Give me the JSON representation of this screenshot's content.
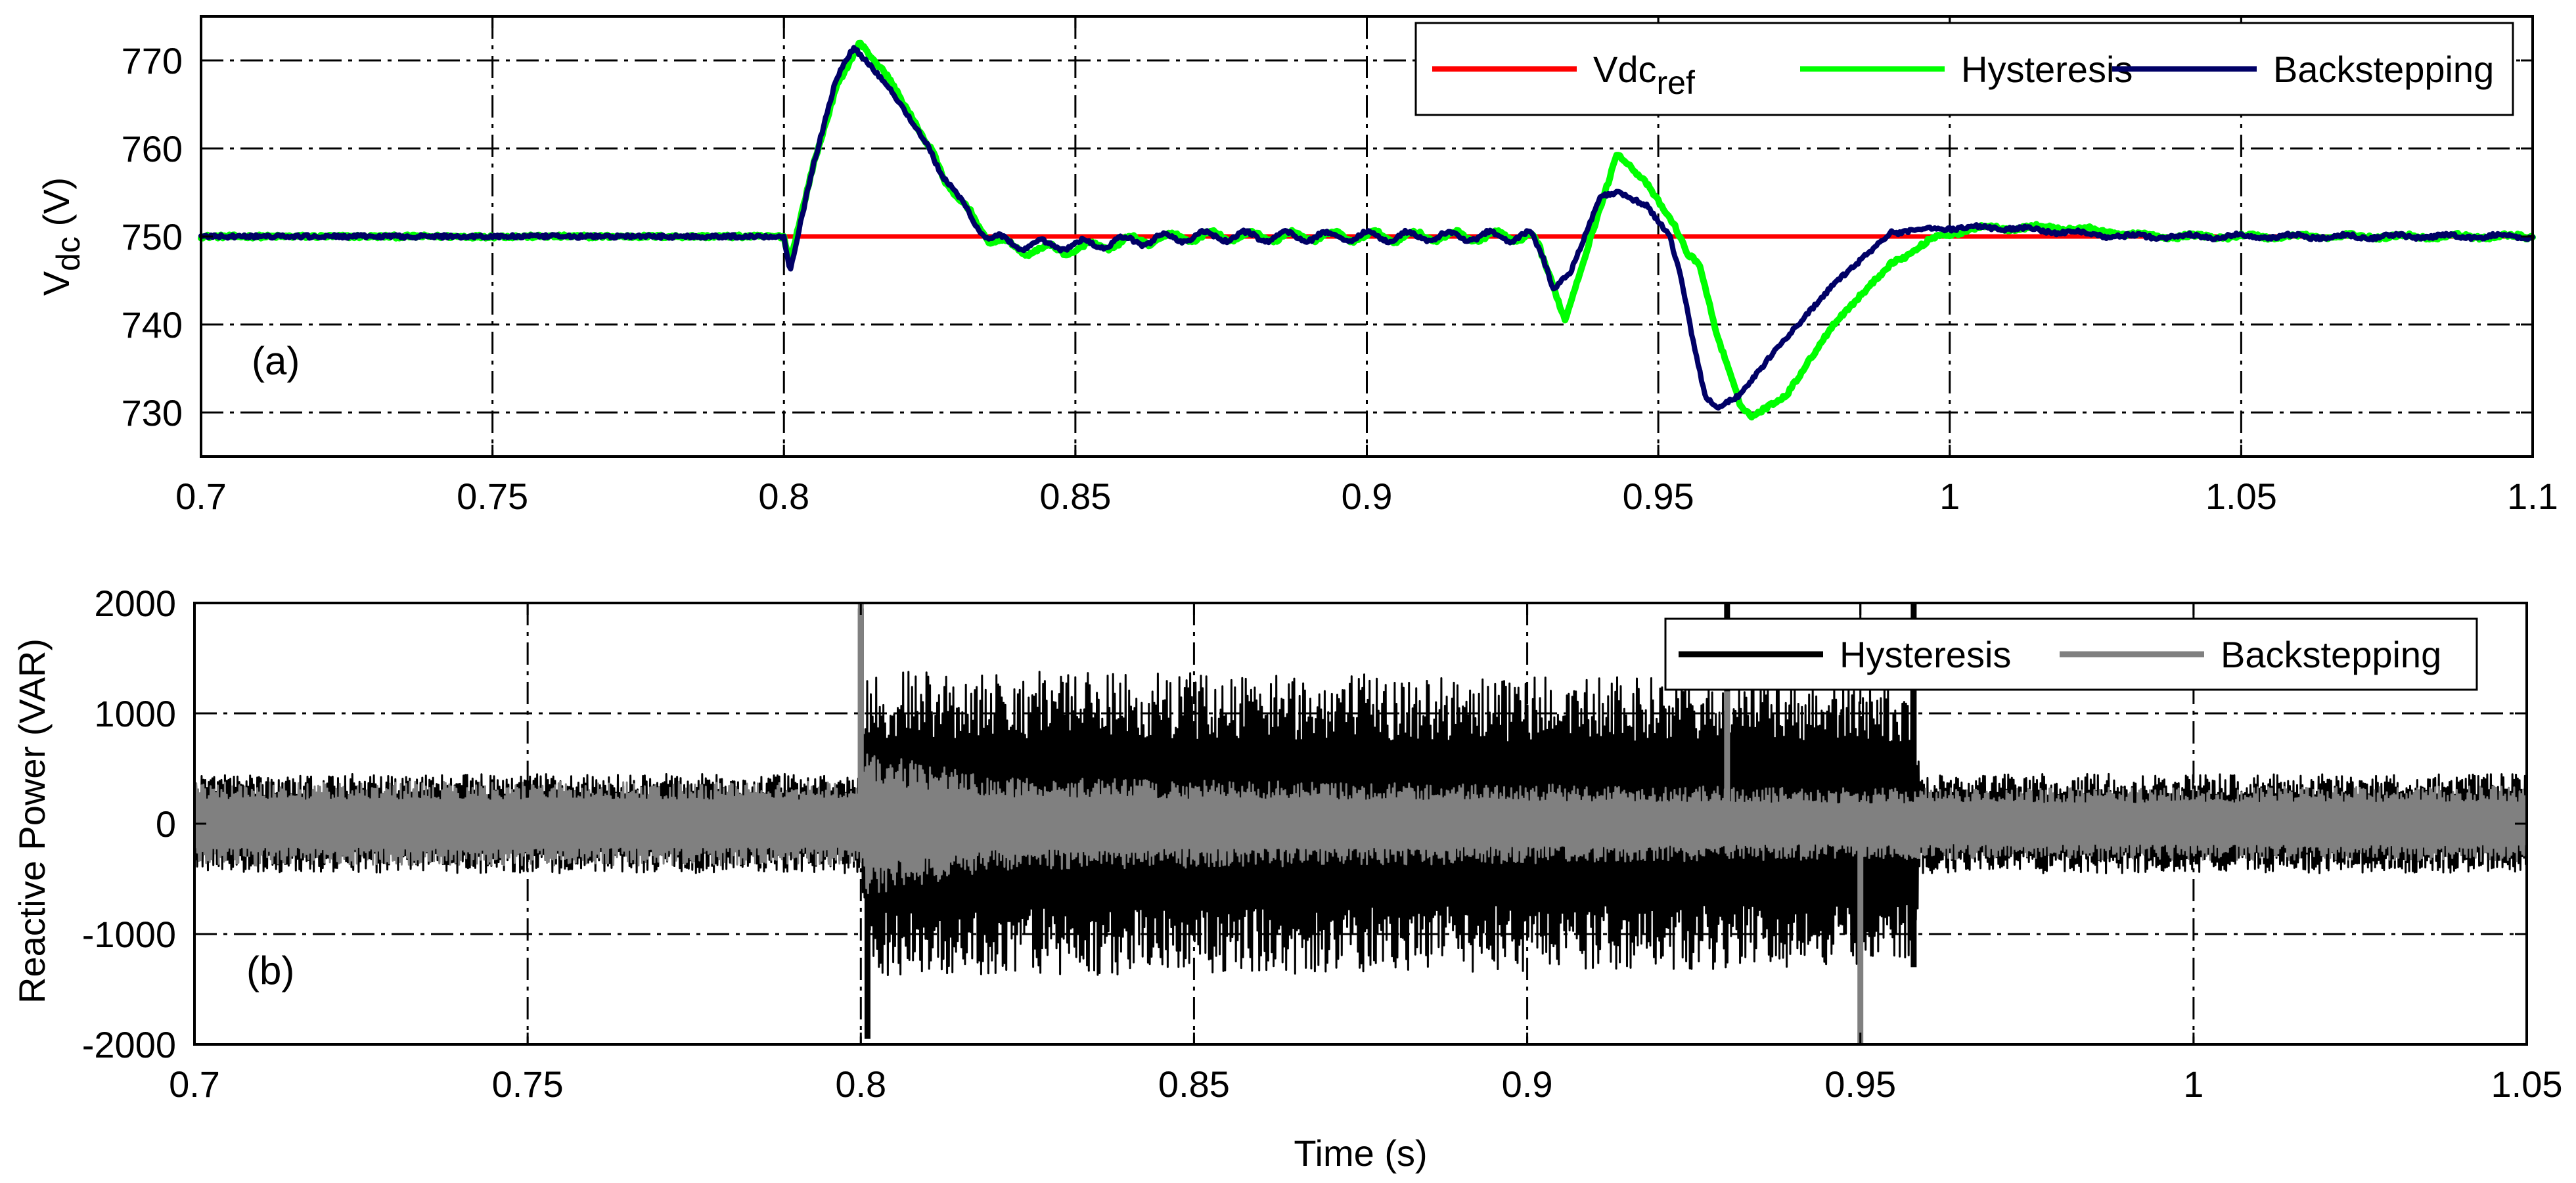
{
  "chart_data": [
    {
      "id": "a",
      "type": "line",
      "panel_label": "(a)",
      "xlabel": "",
      "ylabel_main": "V",
      "ylabel_sub": "dc",
      "ylabel_unit": " (V)",
      "xlim": [
        0.7,
        1.1
      ],
      "ylim": [
        725,
        775
      ],
      "x_ticks": [
        0.7,
        0.75,
        0.8,
        0.85,
        0.9,
        0.95,
        1.0,
        1.05,
        1.1
      ],
      "x_tick_labels": [
        "0.7",
        "0.75",
        "0.8",
        "0.85",
        "0.9",
        "0.95",
        "1",
        "1.05",
        "1.1"
      ],
      "y_ticks": [
        730,
        740,
        750,
        760,
        770
      ],
      "y_tick_labels": [
        "730",
        "740",
        "750",
        "760",
        "770"
      ],
      "grid": true,
      "legend_position": "top-right",
      "series": [
        {
          "name": "Vdc_ref",
          "label_main": "Vdc",
          "label_sub": "ref",
          "color": "#ff0000",
          "points": [
            [
              0.7,
              750
            ],
            [
              0.8,
              750
            ],
            [
              1.1,
              750
            ]
          ]
        },
        {
          "name": "Hysteresis",
          "label_main": "Hysteresis",
          "label_sub": "",
          "color": "#00ff00",
          "points": [
            [
              0.7,
              750
            ],
            [
              0.8,
              750
            ],
            [
              0.801,
              747
            ],
            [
              0.805,
              758
            ],
            [
              0.809,
              767
            ],
            [
              0.813,
              772
            ],
            [
              0.818,
              768
            ],
            [
              0.825,
              760
            ],
            [
              0.83,
              754
            ],
            [
              0.835,
              750
            ],
            [
              0.84,
              748.5
            ],
            [
              0.85,
              748.5
            ],
            [
              0.86,
              749.5
            ],
            [
              0.87,
              750
            ],
            [
              0.9,
              750
            ],
            [
              0.928,
              750
            ],
            [
              0.93,
              748
            ],
            [
              0.934,
              740.5
            ],
            [
              0.938,
              749
            ],
            [
              0.943,
              759.5
            ],
            [
              0.948,
              756
            ],
            [
              0.95,
              754
            ],
            [
              0.953,
              751
            ],
            [
              0.955,
              748
            ],
            [
              0.957,
              747
            ],
            [
              0.96,
              739
            ],
            [
              0.964,
              731
            ],
            [
              0.966,
              729.5
            ],
            [
              0.972,
              732
            ],
            [
              0.98,
              740
            ],
            [
              0.99,
              747
            ],
            [
              0.998,
              750
            ],
            [
              1.005,
              751
            ],
            [
              1.02,
              751
            ],
            [
              1.035,
              750
            ],
            [
              1.1,
              750
            ]
          ]
        },
        {
          "name": "Backstepping",
          "label_main": "Backstepping",
          "label_sub": "",
          "color": "#000066",
          "points": [
            [
              0.7,
              750
            ],
            [
              0.8,
              750
            ],
            [
              0.801,
              746
            ],
            [
              0.805,
              758
            ],
            [
              0.809,
              768
            ],
            [
              0.812,
              771.5
            ],
            [
              0.818,
              767
            ],
            [
              0.825,
              760
            ],
            [
              0.83,
              754
            ],
            [
              0.835,
              750
            ],
            [
              0.84,
              749
            ],
            [
              0.85,
              749
            ],
            [
              0.86,
              749.5
            ],
            [
              0.87,
              750
            ],
            [
              0.9,
              750
            ],
            [
              0.928,
              750
            ],
            [
              0.93,
              748
            ],
            [
              0.932,
              744
            ],
            [
              0.935,
              746
            ],
            [
              0.94,
              754.5
            ],
            [
              0.943,
              755
            ],
            [
              0.948,
              753.5
            ],
            [
              0.952,
              750
            ],
            [
              0.954,
              745
            ],
            [
              0.956,
              738
            ],
            [
              0.958,
              732
            ],
            [
              0.96,
              730.5
            ],
            [
              0.964,
              732
            ],
            [
              0.97,
              737
            ],
            [
              0.98,
              744.5
            ],
            [
              0.99,
              750.5
            ],
            [
              1.0,
              751
            ],
            [
              1.01,
              751
            ],
            [
              1.02,
              750.5
            ],
            [
              1.03,
              750
            ],
            [
              1.1,
              750
            ]
          ]
        }
      ]
    },
    {
      "id": "b",
      "type": "line",
      "panel_label": "(b)",
      "xlabel": "Time (s)",
      "ylabel_main": "Reactive Power (VAR)",
      "ylabel_sub": "",
      "ylabel_unit": "",
      "xlim": [
        0.7,
        1.05
      ],
      "ylim": [
        -2000,
        2000
      ],
      "x_ticks": [
        0.7,
        0.75,
        0.8,
        0.85,
        0.9,
        0.95,
        1.0,
        1.05
      ],
      "x_tick_labels": [
        "0.7",
        "0.75",
        "0.8",
        "0.85",
        "0.9",
        "0.95",
        "1",
        "1.05"
      ],
      "y_ticks": [
        -2000,
        -1000,
        0,
        1000,
        2000
      ],
      "y_tick_labels": [
        "-2000",
        "-1000",
        "0",
        "1000",
        "2000"
      ],
      "grid": true,
      "legend_position": "top-right",
      "series": [
        {
          "name": "Hysteresis",
          "label_main": "Hysteresis",
          "label_sub": "",
          "color": "#000000",
          "envelope": [
            [
              0.7,
              450
            ],
            [
              0.8,
              450
            ],
            [
              0.801,
              1400
            ],
            [
              0.958,
              1300
            ],
            [
              0.959,
              450
            ],
            [
              1.05,
              450
            ]
          ],
          "spikes": [
            [
              0.8,
              1950
            ],
            [
              0.801,
              -1950
            ],
            [
              0.93,
              2000
            ],
            [
              0.958,
              2000
            ],
            [
              0.958,
              -1300
            ]
          ]
        },
        {
          "name": "Backstepping",
          "label_main": "Backstepping",
          "label_sub": "",
          "color": "#808080",
          "envelope": [
            [
              0.7,
              380
            ],
            [
              0.8,
              380
            ],
            [
              0.801,
              650
            ],
            [
              0.82,
              420
            ],
            [
              0.95,
              320
            ],
            [
              0.96,
              320
            ],
            [
              1.05,
              340
            ]
          ],
          "spikes": [
            [
              0.8,
              2000
            ],
            [
              0.93,
              1200
            ],
            [
              0.95,
              -2000
            ]
          ]
        }
      ]
    }
  ]
}
